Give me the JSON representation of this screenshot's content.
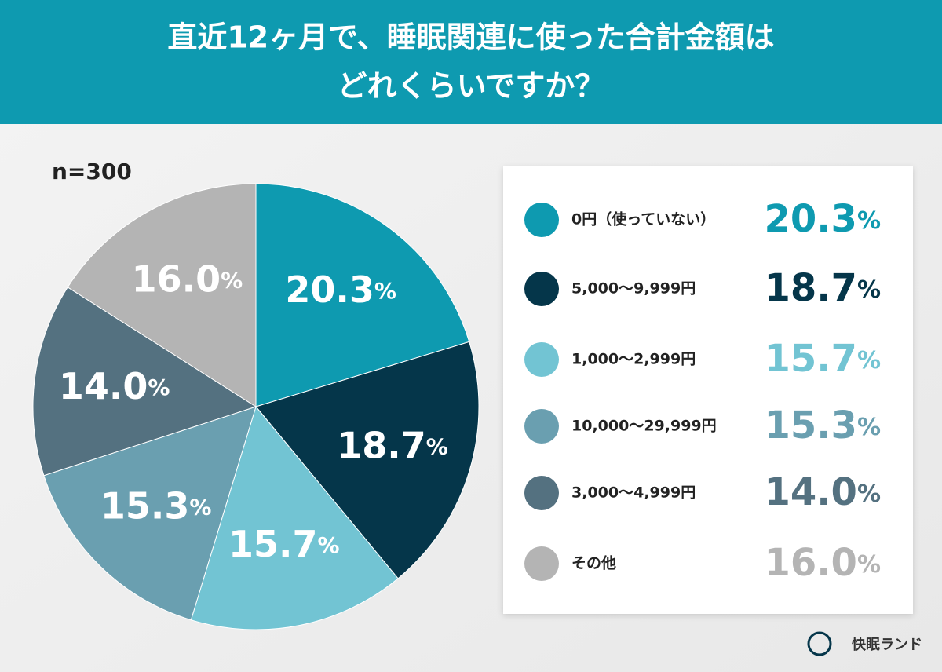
{
  "chart_data": {
    "type": "pie",
    "title": [
      "直近12ヶ月で、睡眠関連に使った合計金額は",
      "どれくらいですか？"
    ],
    "annotation": "n=300",
    "brand": "快眠ランド",
    "categories": [
      "0円（使っていない）",
      "5,000〜9,999円",
      "1,000〜2,999円",
      "10,000〜29,999円",
      "3,000〜4,999円",
      "その他"
    ],
    "values": [
      20.3,
      18.7,
      15.7,
      15.3,
      14.0,
      16.0
    ],
    "value_labels": [
      "20.3%",
      "18.7%",
      "15.7%",
      "15.3%",
      "14.0%",
      "16.0%"
    ],
    "colors": [
      "#0e9ab0",
      "#05364a",
      "#72c4d3",
      "#6a9fb0",
      "#547180",
      "#b4b4b4"
    ]
  }
}
